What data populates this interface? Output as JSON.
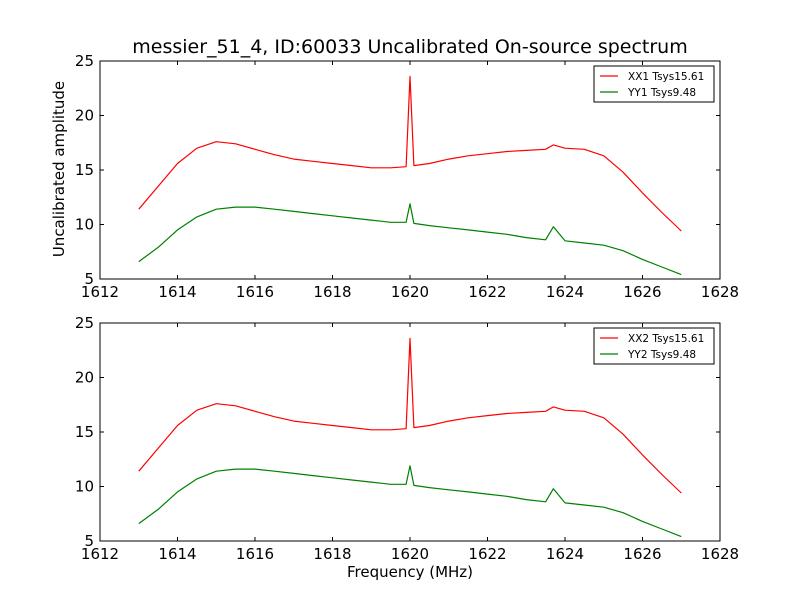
{
  "page": {
    "title": "messier_51_4, ID:60033 Uncalibrated On-source spectrum",
    "xlabel": "Frequency (MHz)",
    "ylabel": "Uncalibrated amplitude"
  },
  "chart_data": [
    {
      "type": "line",
      "xlim": [
        1612,
        1628
      ],
      "ylim": [
        5,
        25
      ],
      "xticks": [
        1612,
        1614,
        1616,
        1618,
        1620,
        1622,
        1624,
        1626,
        1628
      ],
      "yticks": [
        5,
        10,
        15,
        20,
        25
      ],
      "legend": "top-right",
      "grid": false,
      "series": [
        {
          "name": "XX1 Tsys15.61",
          "color": "#ff0000",
          "x": [
            1613.0,
            1613.5,
            1614.0,
            1614.5,
            1615.0,
            1615.5,
            1616.0,
            1616.5,
            1617.0,
            1617.5,
            1618.0,
            1618.5,
            1619.0,
            1619.5,
            1619.9,
            1620.0,
            1620.1,
            1620.5,
            1621.0,
            1621.5,
            1622.0,
            1622.5,
            1623.0,
            1623.5,
            1623.7,
            1624.0,
            1624.5,
            1625.0,
            1625.5,
            1626.0,
            1626.5,
            1627.0
          ],
          "y": [
            11.4,
            13.5,
            15.6,
            17.0,
            17.6,
            17.4,
            16.9,
            16.4,
            16.0,
            15.8,
            15.6,
            15.4,
            15.2,
            15.2,
            15.3,
            23.6,
            15.4,
            15.6,
            16.0,
            16.3,
            16.5,
            16.7,
            16.8,
            16.9,
            17.3,
            17.0,
            16.9,
            16.3,
            14.8,
            12.9,
            11.1,
            9.4
          ]
        },
        {
          "name": "YY1 Tsys9.48",
          "color": "#008000",
          "x": [
            1613.0,
            1613.5,
            1614.0,
            1614.5,
            1615.0,
            1615.5,
            1616.0,
            1616.5,
            1617.0,
            1617.5,
            1618.0,
            1618.5,
            1619.0,
            1619.5,
            1619.9,
            1620.0,
            1620.1,
            1620.5,
            1621.0,
            1621.5,
            1622.0,
            1622.5,
            1623.0,
            1623.5,
            1623.7,
            1624.0,
            1624.5,
            1625.0,
            1625.5,
            1626.0,
            1626.5,
            1627.0
          ],
          "y": [
            6.6,
            7.9,
            9.5,
            10.7,
            11.4,
            11.6,
            11.6,
            11.4,
            11.2,
            11.0,
            10.8,
            10.6,
            10.4,
            10.2,
            10.2,
            11.9,
            10.1,
            9.9,
            9.7,
            9.5,
            9.3,
            9.1,
            8.8,
            8.6,
            9.8,
            8.5,
            8.3,
            8.1,
            7.6,
            6.8,
            6.1,
            5.4
          ]
        }
      ]
    },
    {
      "type": "line",
      "xlim": [
        1612,
        1628
      ],
      "ylim": [
        5,
        25
      ],
      "xticks": [
        1612,
        1614,
        1616,
        1618,
        1620,
        1622,
        1624,
        1626,
        1628
      ],
      "yticks": [
        5,
        10,
        15,
        20,
        25
      ],
      "legend": "top-right",
      "grid": false,
      "series": [
        {
          "name": "XX2 Tsys15.61",
          "color": "#ff0000",
          "x": [
            1613.0,
            1613.5,
            1614.0,
            1614.5,
            1615.0,
            1615.5,
            1616.0,
            1616.5,
            1617.0,
            1617.5,
            1618.0,
            1618.5,
            1619.0,
            1619.5,
            1619.9,
            1620.0,
            1620.1,
            1620.5,
            1621.0,
            1621.5,
            1622.0,
            1622.5,
            1623.0,
            1623.5,
            1623.7,
            1624.0,
            1624.5,
            1625.0,
            1625.5,
            1626.0,
            1626.5,
            1627.0
          ],
          "y": [
            11.4,
            13.5,
            15.6,
            17.0,
            17.6,
            17.4,
            16.9,
            16.4,
            16.0,
            15.8,
            15.6,
            15.4,
            15.2,
            15.2,
            15.3,
            23.6,
            15.4,
            15.6,
            16.0,
            16.3,
            16.5,
            16.7,
            16.8,
            16.9,
            17.3,
            17.0,
            16.9,
            16.3,
            14.8,
            12.9,
            11.1,
            9.4
          ]
        },
        {
          "name": "YY2 Tsys9.48",
          "color": "#008000",
          "x": [
            1613.0,
            1613.5,
            1614.0,
            1614.5,
            1615.0,
            1615.5,
            1616.0,
            1616.5,
            1617.0,
            1617.5,
            1618.0,
            1618.5,
            1619.0,
            1619.5,
            1619.9,
            1620.0,
            1620.1,
            1620.5,
            1621.0,
            1621.5,
            1622.0,
            1622.5,
            1623.0,
            1623.5,
            1623.7,
            1624.0,
            1624.5,
            1625.0,
            1625.5,
            1626.0,
            1626.5,
            1627.0
          ],
          "y": [
            6.6,
            7.9,
            9.5,
            10.7,
            11.4,
            11.6,
            11.6,
            11.4,
            11.2,
            11.0,
            10.8,
            10.6,
            10.4,
            10.2,
            10.2,
            11.9,
            10.1,
            9.9,
            9.7,
            9.5,
            9.3,
            9.1,
            8.8,
            8.6,
            9.8,
            8.5,
            8.3,
            8.1,
            7.6,
            6.8,
            6.1,
            5.4
          ]
        }
      ]
    }
  ]
}
